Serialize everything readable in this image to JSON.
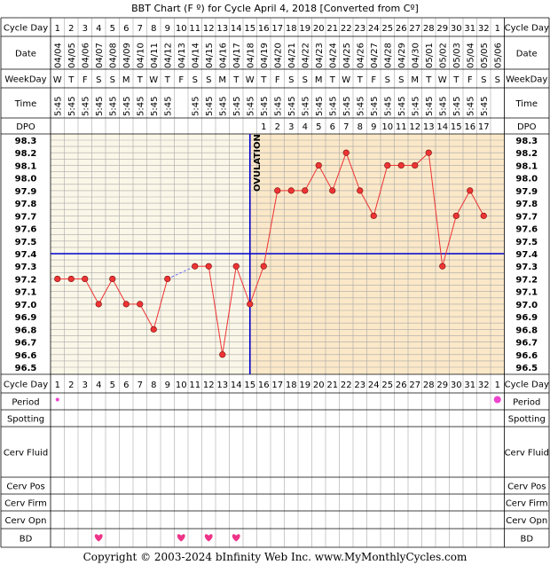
{
  "chart_data": {
    "type": "line",
    "title": "BBT Chart (F º) for Cycle April 4, 2018  [Converted from Cº]",
    "cycle_days": [
      1,
      2,
      3,
      4,
      5,
      6,
      7,
      8,
      9,
      10,
      11,
      12,
      13,
      14,
      15,
      16,
      17,
      18,
      19,
      20,
      21,
      22,
      23,
      24,
      25,
      26,
      27,
      28,
      29,
      30,
      31,
      32,
      1
    ],
    "dates": [
      "04/04",
      "04/05",
      "04/06",
      "04/07",
      "04/08",
      "04/09",
      "04/10",
      "04/11",
      "04/12",
      "04/13",
      "04/14",
      "04/15",
      "04/16",
      "04/17",
      "04/18",
      "04/19",
      "04/20",
      "04/21",
      "04/22",
      "04/23",
      "04/24",
      "04/25",
      "04/26",
      "04/27",
      "04/28",
      "04/29",
      "04/30",
      "05/01",
      "05/02",
      "05/03",
      "05/04",
      "05/05",
      "05/06"
    ],
    "weekdays": [
      "W",
      "T",
      "F",
      "S",
      "S",
      "M",
      "T",
      "W",
      "T",
      "F",
      "S",
      "S",
      "M",
      "T",
      "W",
      "T",
      "F",
      "S",
      "S",
      "M",
      "T",
      "W",
      "T",
      "F",
      "S",
      "S",
      "M",
      "T",
      "W",
      "T",
      "F",
      "S",
      "S"
    ],
    "times": [
      "5:45",
      "5:45",
      "5:45",
      "5:45",
      "5:45",
      "5:45",
      "5:45",
      "5:45",
      "5:45",
      "",
      "5:45",
      "5:45",
      "5:45",
      "5:45",
      "5:45",
      "5:45",
      "5:45",
      "5:45",
      "5:45",
      "5:45",
      "5:45",
      "5:45",
      "5:45",
      "5:45",
      "5:45",
      "5:45",
      "5:45",
      "5:45",
      "5:45",
      "5:45",
      "5:45",
      "5:45",
      ""
    ],
    "dpo": [
      "",
      "",
      "",
      "",
      "",
      "",
      "",
      "",
      "",
      "",
      "",
      "",
      "",
      "",
      "",
      "1",
      "2",
      "3",
      "4",
      "5",
      "6",
      "7",
      "8",
      "9",
      "10",
      "11",
      "12",
      "13",
      "14",
      "15",
      "16",
      "17",
      ""
    ],
    "temperatures": [
      97.2,
      97.2,
      97.2,
      97.0,
      97.2,
      97.0,
      97.0,
      96.8,
      97.2,
      null,
      97.3,
      97.3,
      96.6,
      97.3,
      97.0,
      97.3,
      97.9,
      97.9,
      97.9,
      98.1,
      97.9,
      98.2,
      97.9,
      97.7,
      98.1,
      98.1,
      98.1,
      98.2,
      97.3,
      97.7,
      97.9,
      97.7,
      null
    ],
    "y_ticks": [
      "98.3",
      "98.2",
      "98.1",
      "98.0",
      "97.9",
      "97.8",
      "97.7",
      "97.6",
      "97.5",
      "97.4",
      "97.3",
      "97.2",
      "97.1",
      "97.0",
      "96.9",
      "96.8",
      "96.7",
      "96.6",
      "96.5"
    ],
    "ylim": [
      96.5,
      98.3
    ],
    "coverline": 97.4,
    "ovulation_day_index": 14,
    "ovulation_label": "OVULATION",
    "period_days": [
      0,
      32
    ],
    "bd_days": [
      3,
      9,
      11,
      13
    ],
    "colors": {
      "pre_ovulation_bg": "#fbf7e8",
      "post_ovulation_bg": "#fbe8c8",
      "line": "#ee3333",
      "point": "#ee3333",
      "coverline": "#0000cc",
      "period": "#ee44cc",
      "bd": "#ee3388",
      "dashed_link": "#6666ee"
    }
  },
  "labels": {
    "cycle_day": "Cycle Day",
    "date": "Date",
    "weekday": "WeekDay",
    "time": "Time",
    "dpo": "DPO",
    "period": "Period",
    "spotting": "Spotting",
    "cerv_fluid": "Cerv Fluid",
    "cerv_pos": "Cerv Pos",
    "cerv_firm": "Cerv Firm",
    "cerv_opn": "Cerv Opn",
    "bd": "BD"
  },
  "footer": "Copyright © 2003-2024 bInfinity Web Inc.    www.MyMonthlyCycles.com"
}
